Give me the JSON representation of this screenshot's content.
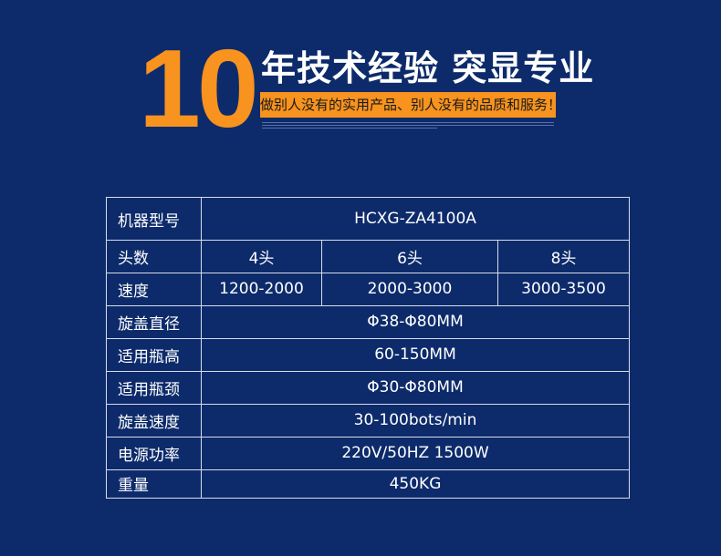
{
  "header": {
    "number": "10",
    "headline": "年技术经验 突显专业",
    "tagline": "做别人没有的实用产品、别人没有的品质和服务！",
    "accent_color": "#f7931e",
    "background_color": "#0d2b6b"
  },
  "spec_table": {
    "rows": [
      {
        "label": "机器型号",
        "values": [
          "HCXG-ZA4100A"
        ]
      },
      {
        "label": "头数",
        "values": [
          "4头",
          "6头",
          "8头"
        ]
      },
      {
        "label": "速度",
        "values": [
          "1200-2000",
          "2000-3000",
          "3000-3500"
        ]
      },
      {
        "label": "旋盖直径",
        "values": [
          "Φ38-Φ80MM"
        ]
      },
      {
        "label": "适用瓶高",
        "values": [
          "60-150MM"
        ]
      },
      {
        "label": "适用瓶颈",
        "values": [
          "Φ30-Φ80MM"
        ]
      },
      {
        "label": "旋盖速度",
        "values": [
          "30-100bots/min"
        ]
      },
      {
        "label": "电源功率",
        "values": [
          "220V/50HZ  1500W"
        ]
      },
      {
        "label": "重量",
        "values": [
          "450KG"
        ]
      }
    ]
  }
}
